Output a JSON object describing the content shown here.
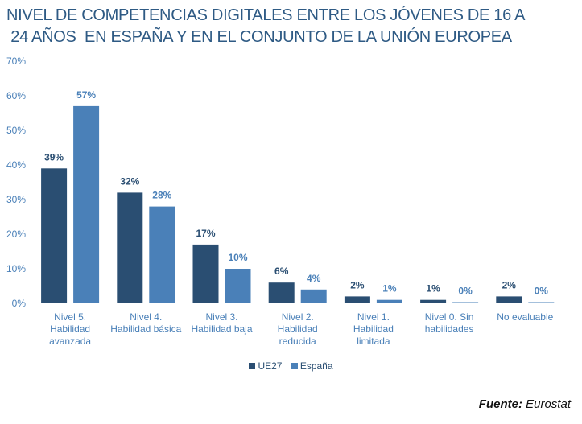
{
  "chart_data": {
    "type": "bar",
    "title_lines": [
      "NIVEL DE COMPETENCIAS DIGITALES ENTRE LOS JÓVENES DE 16 A",
      " 24 AÑOS  EN ESPAÑA Y EN EL CONJUNTO DE LA UNIÓN EUROPEA"
    ],
    "categories": [
      [
        "Nivel 5.",
        "Habilidad",
        "avanzada"
      ],
      [
        "Nivel 4.",
        "Habilidad básica"
      ],
      [
        "Nivel 3.",
        "Habilidad baja"
      ],
      [
        "Nivel 2.",
        "Habilidad",
        "reducida"
      ],
      [
        "Nivel 1.",
        "Habilidad",
        "limitada"
      ],
      [
        "Nivel 0. Sin",
        "habilidades"
      ],
      [
        "No evaluable"
      ]
    ],
    "series": [
      {
        "name": "UE27",
        "color": "#2A4E72",
        "values": [
          39,
          32,
          17,
          6,
          2,
          1,
          2
        ],
        "labels": [
          "39%",
          "32%",
          "17%",
          "6%",
          "2%",
          "1%",
          "2%"
        ]
      },
      {
        "name": "España",
        "color": "#4A80B8",
        "values": [
          57,
          28,
          10,
          4,
          1,
          0.3,
          0.3
        ],
        "labels": [
          "57%",
          "28%",
          "10%",
          "4%",
          "1%",
          "0%",
          "0%"
        ]
      }
    ],
    "yticks": [
      "0%",
      "10%",
      "20%",
      "30%",
      "40%",
      "50%",
      "60%",
      "70%"
    ],
    "ylim": [
      0,
      70
    ],
    "xlabel": "",
    "ylabel": "",
    "grid": false,
    "legend_position": "bottom"
  },
  "source": {
    "label": "Fuente:",
    "value": "Eurostat"
  }
}
